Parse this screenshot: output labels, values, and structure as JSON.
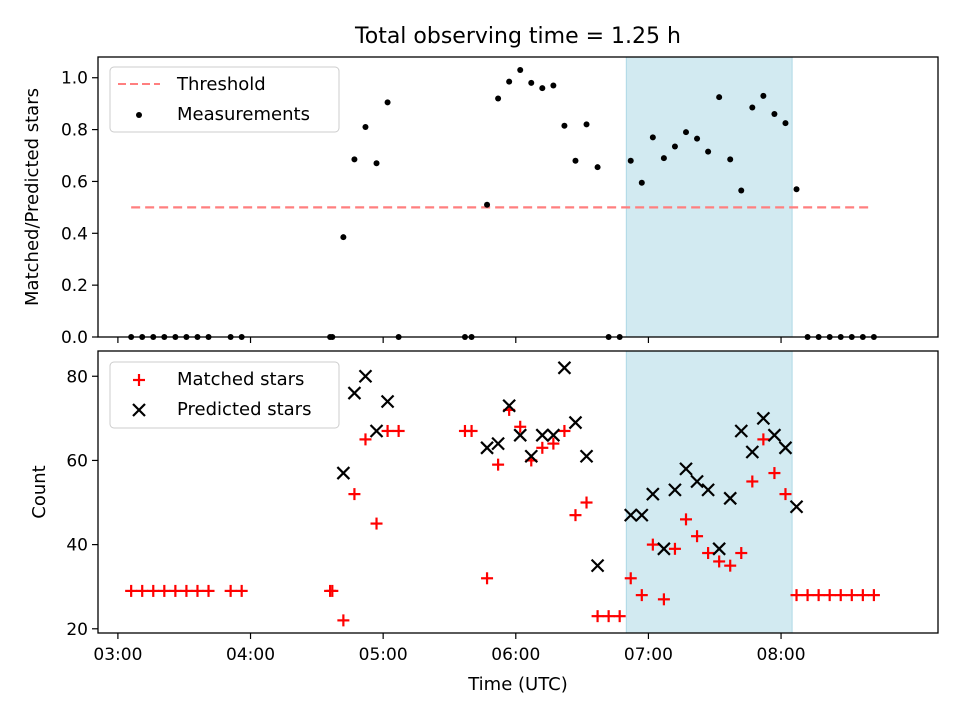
{
  "figure": {
    "title": "Total observing time = 1.25 h",
    "xlabel": "Time (UTC)"
  },
  "colors": {
    "threshold": "#ff7f7f",
    "measurement": "#000000",
    "matched": "#ff0000",
    "predicted": "#000000",
    "shade": "#add8e6"
  },
  "chart_data": [
    {
      "type": "scatter",
      "title": "Total observing time = 1.25 h",
      "xlabel": "",
      "ylabel": "Matched/Predicted stars",
      "x_units": "hours UTC",
      "xlim": [
        "02:51",
        "09:11"
      ],
      "ylim": [
        0,
        1.08
      ],
      "x_ticks": [
        "03:00",
        "04:00",
        "05:00",
        "06:00",
        "07:00",
        "08:00"
      ],
      "y_ticks": [
        "0.0",
        "0.2",
        "0.4",
        "0.6",
        "0.8",
        "1.0"
      ],
      "legend": {
        "position": "upper-left",
        "entries": [
          "Threshold",
          "Measurements"
        ]
      },
      "shaded_span": [
        "06:50",
        "08:05"
      ],
      "series": [
        {
          "name": "Threshold",
          "style": "dashed-line",
          "x": [
            "03:06",
            "08:40"
          ],
          "y": [
            0.5,
            0.5
          ]
        },
        {
          "name": "Measurements",
          "style": "dot",
          "points": [
            [
              "03:06",
              0
            ],
            [
              "03:11",
              0
            ],
            [
              "03:16",
              0
            ],
            [
              "03:21",
              0
            ],
            [
              "03:26",
              0
            ],
            [
              "03:31",
              0
            ],
            [
              "03:36",
              0
            ],
            [
              "03:41",
              0
            ],
            [
              "03:51",
              0
            ],
            [
              "03:56",
              0
            ],
            [
              "04:36",
              0
            ],
            [
              "04:37",
              0
            ],
            [
              "04:42",
              0.385
            ],
            [
              "04:47",
              0.685
            ],
            [
              "04:52",
              0.81
            ],
            [
              "04:57",
              0.67
            ],
            [
              "05:02",
              0.905
            ],
            [
              "05:07",
              0
            ],
            [
              "05:37",
              0
            ],
            [
              "05:40",
              0
            ],
            [
              "05:47",
              0.51
            ],
            [
              "05:52",
              0.92
            ],
            [
              "05:57",
              0.985
            ],
            [
              "06:02",
              1.03
            ],
            [
              "06:07",
              0.98
            ],
            [
              "06:12",
              0.96
            ],
            [
              "06:17",
              0.97
            ],
            [
              "06:22",
              0.815
            ],
            [
              "06:27",
              0.68
            ],
            [
              "06:32",
              0.82
            ],
            [
              "06:37",
              0.655
            ],
            [
              "06:42",
              0
            ],
            [
              "06:47",
              0
            ],
            [
              "06:52",
              0.68
            ],
            [
              "06:57",
              0.595
            ],
            [
              "07:02",
              0.77
            ],
            [
              "07:07",
              0.69
            ],
            [
              "07:12",
              0.735
            ],
            [
              "07:17",
              0.79
            ],
            [
              "07:22",
              0.765
            ],
            [
              "07:27",
              0.715
            ],
            [
              "07:32",
              0.925
            ],
            [
              "07:37",
              0.685
            ],
            [
              "07:42",
              0.565
            ],
            [
              "07:47",
              0.885
            ],
            [
              "07:52",
              0.93
            ],
            [
              "07:57",
              0.86
            ],
            [
              "08:02",
              0.825
            ],
            [
              "08:07",
              0.57
            ],
            [
              "08:12",
              0
            ],
            [
              "08:17",
              0
            ],
            [
              "08:22",
              0
            ],
            [
              "08:27",
              0
            ],
            [
              "08:32",
              0
            ],
            [
              "08:37",
              0
            ],
            [
              "08:42",
              0
            ]
          ]
        }
      ]
    },
    {
      "type": "scatter",
      "xlabel": "Time (UTC)",
      "ylabel": "Count",
      "x_units": "hours UTC",
      "xlim": [
        "02:51",
        "09:11"
      ],
      "ylim": [
        19,
        86
      ],
      "x_ticks": [
        "03:00",
        "04:00",
        "05:00",
        "06:00",
        "07:00",
        "08:00"
      ],
      "y_ticks": [
        "20",
        "40",
        "60",
        "80"
      ],
      "legend": {
        "position": "upper-left",
        "entries": [
          "Matched stars",
          "Predicted stars"
        ]
      },
      "shaded_span": [
        "06:50",
        "08:05"
      ],
      "series": [
        {
          "name": "Matched stars",
          "marker": "plus",
          "points": [
            [
              "03:06",
              29
            ],
            [
              "03:11",
              29
            ],
            [
              "03:16",
              29
            ],
            [
              "03:21",
              29
            ],
            [
              "03:26",
              29
            ],
            [
              "03:31",
              29
            ],
            [
              "03:36",
              29
            ],
            [
              "03:41",
              29
            ],
            [
              "03:51",
              29
            ],
            [
              "03:56",
              29
            ],
            [
              "04:36",
              29
            ],
            [
              "04:37",
              29
            ],
            [
              "04:42",
              22
            ],
            [
              "04:47",
              52
            ],
            [
              "04:52",
              65
            ],
            [
              "04:57",
              45
            ],
            [
              "05:02",
              67
            ],
            [
              "05:07",
              67
            ],
            [
              "05:37",
              67
            ],
            [
              "05:40",
              67
            ],
            [
              "05:47",
              32
            ],
            [
              "05:52",
              59
            ],
            [
              "05:57",
              72
            ],
            [
              "06:02",
              68
            ],
            [
              "06:07",
              60
            ],
            [
              "06:12",
              63
            ],
            [
              "06:17",
              64
            ],
            [
              "06:22",
              67
            ],
            [
              "06:27",
              47
            ],
            [
              "06:32",
              50
            ],
            [
              "06:37",
              23
            ],
            [
              "06:42",
              23
            ],
            [
              "06:47",
              23
            ],
            [
              "06:52",
              32
            ],
            [
              "06:57",
              28
            ],
            [
              "07:02",
              40
            ],
            [
              "07:07",
              27
            ],
            [
              "07:12",
              39
            ],
            [
              "07:17",
              46
            ],
            [
              "07:22",
              42
            ],
            [
              "07:27",
              38
            ],
            [
              "07:32",
              36
            ],
            [
              "07:37",
              35
            ],
            [
              "07:42",
              38
            ],
            [
              "07:47",
              55
            ],
            [
              "07:52",
              65
            ],
            [
              "07:57",
              57
            ],
            [
              "08:02",
              52
            ],
            [
              "08:07",
              28
            ],
            [
              "08:12",
              28
            ],
            [
              "08:17",
              28
            ],
            [
              "08:22",
              28
            ],
            [
              "08:27",
              28
            ],
            [
              "08:32",
              28
            ],
            [
              "08:37",
              28
            ],
            [
              "08:42",
              28
            ]
          ]
        },
        {
          "name": "Predicted stars",
          "marker": "x",
          "points": [
            [
              "04:42",
              57
            ],
            [
              "04:47",
              76
            ],
            [
              "04:52",
              80
            ],
            [
              "04:57",
              67
            ],
            [
              "05:02",
              74
            ],
            [
              "05:47",
              63
            ],
            [
              "05:52",
              64
            ],
            [
              "05:57",
              73
            ],
            [
              "06:02",
              66
            ],
            [
              "06:07",
              61
            ],
            [
              "06:12",
              66
            ],
            [
              "06:17",
              66
            ],
            [
              "06:22",
              82
            ],
            [
              "06:27",
              69
            ],
            [
              "06:32",
              61
            ],
            [
              "06:37",
              35
            ],
            [
              "06:52",
              47
            ],
            [
              "06:57",
              47
            ],
            [
              "07:02",
              52
            ],
            [
              "07:07",
              39
            ],
            [
              "07:12",
              53
            ],
            [
              "07:17",
              58
            ],
            [
              "07:22",
              55
            ],
            [
              "07:27",
              53
            ],
            [
              "07:32",
              39
            ],
            [
              "07:37",
              51
            ],
            [
              "07:42",
              67
            ],
            [
              "07:47",
              62
            ],
            [
              "07:52",
              70
            ],
            [
              "07:57",
              66
            ],
            [
              "08:02",
              63
            ],
            [
              "08:07",
              49
            ]
          ]
        }
      ]
    }
  ]
}
